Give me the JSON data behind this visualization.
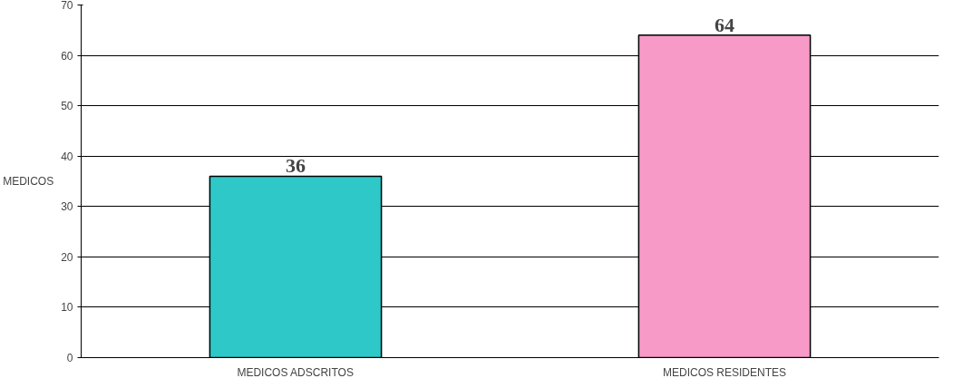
{
  "chart_data": {
    "type": "bar",
    "ylabel": "MEDICOS",
    "categories": [
      "MEDICOS ADSCRITOS",
      "MEDICOS RESIDENTES"
    ],
    "values": [
      36,
      64
    ],
    "colors": [
      "#2ec8c8",
      "#f79ac8"
    ],
    "ylim": [
      0,
      70
    ],
    "yticks": [
      0,
      10,
      20,
      30,
      40,
      50,
      60,
      70
    ],
    "grid": "y",
    "data_labels": true
  }
}
